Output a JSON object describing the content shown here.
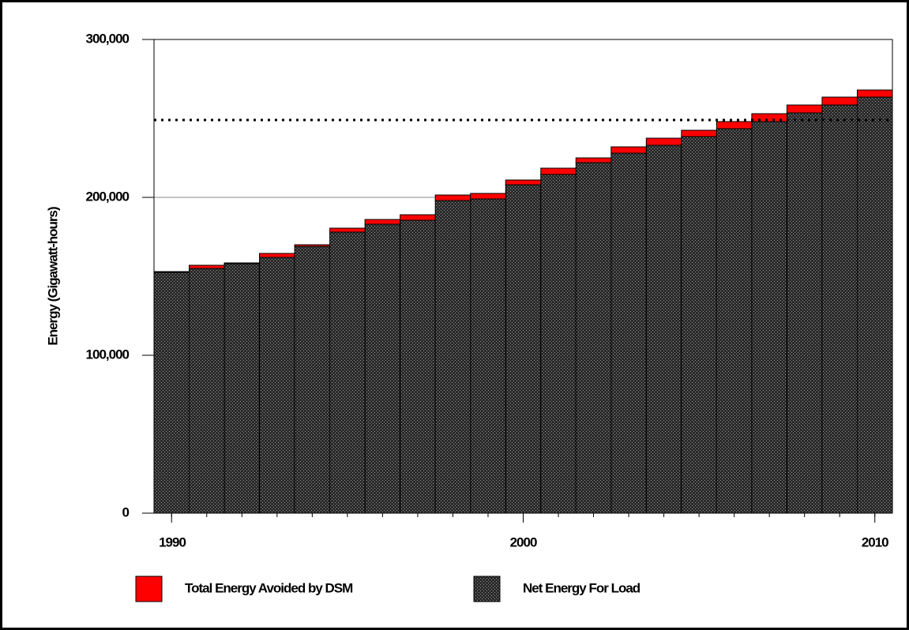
{
  "chart_data": {
    "type": "stacked-step-bar",
    "y_label": "Energy (Gigawatt-hours)",
    "x": [
      1990,
      1991,
      1992,
      1993,
      1994,
      1995,
      1996,
      1997,
      1998,
      1999,
      2000,
      2001,
      2002,
      2003,
      2004,
      2005,
      2006,
      2007,
      2008,
      2009,
      2010
    ],
    "xlim": [
      1989.5,
      2010.5
    ],
    "xticks": [
      1990,
      2000,
      2010
    ],
    "ylim": [
      0,
      300000
    ],
    "yticks": [
      {
        "value": 0,
        "label": "0"
      },
      {
        "value": 100000,
        "label": "100,000"
      },
      {
        "value": 200000,
        "label": "200,000"
      },
      {
        "value": 300000,
        "label": "300,000"
      }
    ],
    "grid": true,
    "reference_line": 249000,
    "series": [
      {
        "name": "Total Energy Avoided by DSM",
        "color": "#ff0000",
        "values": [
          500,
          2000,
          500,
          2500,
          1000,
          2500,
          3000,
          3500,
          3500,
          3500,
          3000,
          4000,
          3000,
          4000,
          4500,
          4000,
          4500,
          5000,
          5000,
          5000,
          4500
        ]
      },
      {
        "name": "Net Energy For Load",
        "color": "#3a3a3a",
        "values": [
          152500,
          155000,
          158000,
          162000,
          169000,
          178000,
          183000,
          185500,
          198000,
          199000,
          208000,
          214500,
          222000,
          228000,
          233000,
          238500,
          243500,
          248000,
          253500,
          258500,
          263500
        ]
      }
    ]
  }
}
